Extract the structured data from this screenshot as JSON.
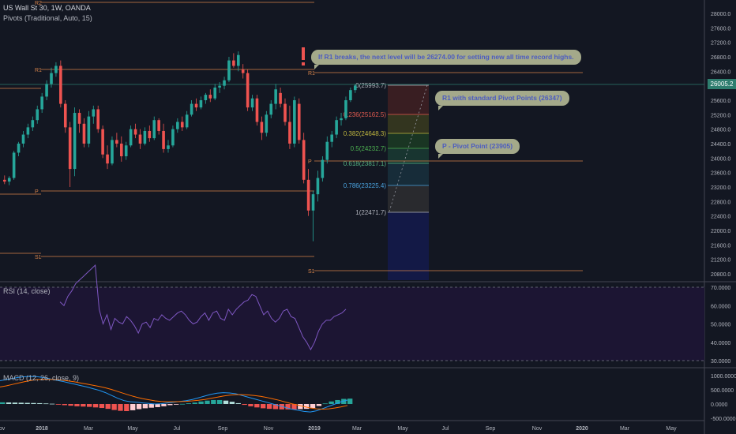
{
  "header": {
    "symbol_line": "US Wall St 30, 1W, OANDA",
    "pivots_line": "Pivots (Traditional, Auto, 15)"
  },
  "price_axis": {
    "ticks": [
      "28000.0",
      "27600.0",
      "27200.0",
      "26800.0",
      "26400.0",
      "26000.0",
      "25600.0",
      "25200.0",
      "24800.0",
      "24400.0",
      "24000.0",
      "23600.0",
      "23200.0",
      "22800.0",
      "22400.0",
      "22000.0",
      "21600.0",
      "21200.0",
      "20800.0"
    ],
    "current_price": "26005.2",
    "current_price_color": "#2e7d6e"
  },
  "pivot_levels": {
    "colors": {
      "pivot_line": "#d4824a",
      "background": "#131722"
    },
    "left_block": {
      "r2": "R2",
      "r1": "R1",
      "p": "P",
      "s1": "S1"
    },
    "right_block": {
      "r1": "R1",
      "p": "P",
      "s1": "S1"
    }
  },
  "fibonacci": {
    "levels": [
      {
        "label": "0(25993.7)",
        "color": "#b2b5be"
      },
      {
        "label": "0.236(25162.5)",
        "color": "#e05a4f"
      },
      {
        "label": "0.382(24648.3)",
        "color": "#c0b73f"
      },
      {
        "label": "0.5(24232.7)",
        "color": "#4caf50"
      },
      {
        "label": "0.618(23817.1)",
        "color": "#55b785"
      },
      {
        "label": "0.786(23225.4)",
        "color": "#4aa3df"
      },
      {
        "label": "1(22471.7)",
        "color": "#b2b5be"
      }
    ]
  },
  "callouts": [
    {
      "text": "If R1 breaks, the next level will be 26274.00 for setting new all time record highs."
    },
    {
      "text": "R1 with standard Pivot Points (26347)"
    },
    {
      "text": "P - Pivot Point (23905)"
    }
  ],
  "rsi": {
    "label": "RSI (14, close)",
    "ticks": [
      "70.0000",
      "60.0000",
      "50.0000",
      "40.0000",
      "30.0000"
    ]
  },
  "macd": {
    "label": "MACD (12, 26, close, 9)",
    "ticks": [
      "1000.0000",
      "500.0000",
      "0.0000",
      "-500.0000"
    ]
  },
  "time_axis": {
    "labels": [
      "Nov",
      "2018",
      "Mar",
      "May",
      "Jul",
      "Sep",
      "Nov",
      "2019",
      "Mar",
      "May",
      "Jul",
      "Sep",
      "Nov",
      "2020",
      "Mar",
      "May"
    ]
  },
  "colors": {
    "up": "#26a69a",
    "down": "#ef5350",
    "rsi_line": "#7e57c2",
    "macd_line": "#2196f3",
    "signal_line": "#ff6d00"
  },
  "chart_data": {
    "type": "candlestick",
    "candles": [
      {
        "o": 23400,
        "h": 23520,
        "l": 23280,
        "c": 23350
      },
      {
        "o": 23350,
        "h": 23500,
        "l": 23250,
        "c": 23450
      },
      {
        "o": 23450,
        "h": 24200,
        "l": 23400,
        "c": 24150
      },
      {
        "o": 24150,
        "h": 24450,
        "l": 24050,
        "c": 24400
      },
      {
        "o": 24400,
        "h": 24750,
        "l": 24300,
        "c": 24650
      },
      {
        "o": 24650,
        "h": 24950,
        "l": 24550,
        "c": 24850
      },
      {
        "o": 24850,
        "h": 25150,
        "l": 24750,
        "c": 25050
      },
      {
        "o": 25050,
        "h": 25450,
        "l": 24950,
        "c": 25350
      },
      {
        "o": 25350,
        "h": 25800,
        "l": 25250,
        "c": 25700
      },
      {
        "o": 25700,
        "h": 26150,
        "l": 25600,
        "c": 26050
      },
      {
        "o": 26050,
        "h": 26500,
        "l": 25950,
        "c": 26350
      },
      {
        "o": 26350,
        "h": 26650,
        "l": 26250,
        "c": 26550
      },
      {
        "o": 26550,
        "h": 26700,
        "l": 25400,
        "c": 25500
      },
      {
        "o": 25500,
        "h": 25600,
        "l": 24700,
        "c": 24850
      },
      {
        "o": 24850,
        "h": 25000,
        "l": 23200,
        "c": 23700
      },
      {
        "o": 23700,
        "h": 25400,
        "l": 23500,
        "c": 25250
      },
      {
        "o": 25250,
        "h": 25350,
        "l": 24700,
        "c": 24950
      },
      {
        "o": 24950,
        "h": 25100,
        "l": 24300,
        "c": 24400
      },
      {
        "o": 24400,
        "h": 25300,
        "l": 24300,
        "c": 25150
      },
      {
        "o": 25150,
        "h": 25450,
        "l": 24950,
        "c": 25350
      },
      {
        "o": 25350,
        "h": 25450,
        "l": 24700,
        "c": 24800
      },
      {
        "o": 24800,
        "h": 24900,
        "l": 24000,
        "c": 24100
      },
      {
        "o": 24100,
        "h": 24350,
        "l": 23700,
        "c": 23850
      },
      {
        "o": 23850,
        "h": 24600,
        "l": 23800,
        "c": 24500
      },
      {
        "o": 24500,
        "h": 24700,
        "l": 24300,
        "c": 24400
      },
      {
        "o": 24400,
        "h": 24600,
        "l": 23900,
        "c": 24050
      },
      {
        "o": 24050,
        "h": 24450,
        "l": 23950,
        "c": 24350
      },
      {
        "o": 24350,
        "h": 24900,
        "l": 24300,
        "c": 24800
      },
      {
        "o": 24800,
        "h": 24950,
        "l": 24550,
        "c": 24650
      },
      {
        "o": 24650,
        "h": 24800,
        "l": 24250,
        "c": 24400
      },
      {
        "o": 24400,
        "h": 24850,
        "l": 24350,
        "c": 24750
      },
      {
        "o": 24750,
        "h": 24900,
        "l": 24450,
        "c": 24550
      },
      {
        "o": 24550,
        "h": 25150,
        "l": 24500,
        "c": 25050
      },
      {
        "o": 25050,
        "h": 25100,
        "l": 24650,
        "c": 24750
      },
      {
        "o": 24750,
        "h": 24950,
        "l": 24150,
        "c": 24250
      },
      {
        "o": 24250,
        "h": 24500,
        "l": 24150,
        "c": 24350
      },
      {
        "o": 24350,
        "h": 24900,
        "l": 24300,
        "c": 24800
      },
      {
        "o": 24800,
        "h": 25100,
        "l": 24700,
        "c": 25000
      },
      {
        "o": 25000,
        "h": 25150,
        "l": 24750,
        "c": 24850
      },
      {
        "o": 24850,
        "h": 25300,
        "l": 24800,
        "c": 25200
      },
      {
        "o": 25200,
        "h": 25600,
        "l": 25150,
        "c": 25500
      },
      {
        "o": 25500,
        "h": 25650,
        "l": 25300,
        "c": 25400
      },
      {
        "o": 25400,
        "h": 25700,
        "l": 25350,
        "c": 25600
      },
      {
        "o": 25600,
        "h": 25800,
        "l": 25500,
        "c": 25750
      },
      {
        "o": 25750,
        "h": 25900,
        "l": 25550,
        "c": 25650
      },
      {
        "o": 25650,
        "h": 26050,
        "l": 25600,
        "c": 25950
      },
      {
        "o": 25950,
        "h": 26100,
        "l": 25800,
        "c": 26000
      },
      {
        "o": 26000,
        "h": 26250,
        "l": 25900,
        "c": 26150
      },
      {
        "o": 26150,
        "h": 26800,
        "l": 26100,
        "c": 26700
      },
      {
        "o": 26700,
        "h": 26900,
        "l": 26500,
        "c": 26550
      },
      {
        "o": 26550,
        "h": 26950,
        "l": 26400,
        "c": 26850
      },
      {
        "o": 26450,
        "h": 26600,
        "l": 26200,
        "c": 26350
      },
      {
        "o": 26350,
        "h": 26450,
        "l": 25300,
        "c": 25400
      },
      {
        "o": 25400,
        "h": 25750,
        "l": 25300,
        "c": 25650
      },
      {
        "o": 25650,
        "h": 25750,
        "l": 24900,
        "c": 25000
      },
      {
        "o": 25000,
        "h": 25150,
        "l": 24500,
        "c": 24700
      },
      {
        "o": 24700,
        "h": 25300,
        "l": 24600,
        "c": 25200
      },
      {
        "o": 25200,
        "h": 25600,
        "l": 25100,
        "c": 25500
      },
      {
        "o": 25500,
        "h": 26050,
        "l": 25350,
        "c": 25900
      },
      {
        "o": 25800,
        "h": 25950,
        "l": 25400,
        "c": 25500
      },
      {
        "o": 25500,
        "h": 25650,
        "l": 24900,
        "c": 25000
      },
      {
        "o": 25000,
        "h": 25450,
        "l": 24250,
        "c": 24400
      },
      {
        "o": 24400,
        "h": 25700,
        "l": 24300,
        "c": 25600
      },
      {
        "o": 25500,
        "h": 25650,
        "l": 24400,
        "c": 24500
      },
      {
        "o": 24500,
        "h": 24700,
        "l": 23300,
        "c": 23400
      },
      {
        "o": 23400,
        "h": 23700,
        "l": 22400,
        "c": 22550
      },
      {
        "o": 22550,
        "h": 23100,
        "l": 21700,
        "c": 23000
      },
      {
        "o": 23000,
        "h": 23650,
        "l": 22800,
        "c": 23450
      },
      {
        "o": 23450,
        "h": 24050,
        "l": 23350,
        "c": 23950
      },
      {
        "o": 23950,
        "h": 24600,
        "l": 23850,
        "c": 24450
      },
      {
        "o": 24450,
        "h": 24750,
        "l": 24300,
        "c": 24650
      },
      {
        "o": 24650,
        "h": 25150,
        "l": 24550,
        "c": 25050
      },
      {
        "o": 25050,
        "h": 25250,
        "l": 24900,
        "c": 25100
      },
      {
        "o": 25100,
        "h": 25700,
        "l": 25050,
        "c": 25600
      },
      {
        "o": 25600,
        "h": 25950,
        "l": 25550,
        "c": 25880
      },
      {
        "o": 25880,
        "h": 26050,
        "l": 25800,
        "c": 26005.2
      }
    ],
    "rsi": [
      62,
      60,
      65,
      68,
      72,
      74,
      76,
      78,
      80,
      82,
      58,
      50,
      55,
      47,
      53,
      51,
      50,
      54,
      52,
      49,
      45,
      50,
      51,
      48,
      53,
      52,
      55,
      53,
      52,
      54,
      56,
      57,
      55,
      52,
      50,
      51,
      54,
      56,
      52,
      56,
      57,
      53,
      52,
      58,
      55,
      58,
      60,
      62,
      63,
      66,
      65,
      60,
      55,
      57,
      53,
      51,
      53,
      57,
      58,
      54,
      53,
      48,
      43,
      40,
      36,
      40,
      46,
      50,
      52,
      52,
      54,
      55,
      56,
      58
    ],
    "macd": [
      820,
      860,
      900,
      940,
      960,
      970,
      960,
      930,
      890,
      840,
      800,
      750,
      700,
      650,
      600,
      540,
      480,
      400,
      300,
      200,
      120,
      80,
      60,
      40,
      20,
      0,
      10,
      40,
      60,
      90,
      120,
      160,
      220,
      280,
      340,
      380,
      400,
      390,
      360,
      300,
      240,
      180,
      120,
      60,
      0,
      -60,
      -120,
      -180,
      -220,
      -260,
      -280,
      -240,
      -160,
      -80,
      0,
      80,
      140
    ],
    "signal": [
      600,
      640,
      690,
      740,
      790,
      830,
      860,
      870,
      870,
      860,
      840,
      810,
      780,
      740,
      700,
      660,
      620,
      570,
      510,
      440,
      370,
      300,
      240,
      190,
      150,
      110,
      90,
      80,
      80,
      85,
      95,
      110,
      130,
      160,
      200,
      240,
      280,
      310,
      330,
      330,
      320,
      300,
      270,
      230,
      180,
      130,
      70,
      10,
      -40,
      -90,
      -140,
      -170,
      -180,
      -170,
      -140,
      -100,
      -50
    ],
    "hist": [
      60,
      55,
      50,
      45,
      40,
      35,
      30,
      20,
      10,
      -20,
      -40,
      -60,
      -80,
      -90,
      -100,
      -120,
      -140,
      -170,
      -210,
      -240,
      -250,
      -220,
      -180,
      -150,
      -130,
      -110,
      -80,
      -40,
      -20,
      5,
      25,
      50,
      90,
      120,
      140,
      140,
      120,
      80,
      30,
      -30,
      -80,
      -120,
      -150,
      -170,
      -180,
      -190,
      -190,
      -190,
      -180,
      -170,
      -140,
      -70,
      20,
      90,
      140,
      180,
      190
    ]
  }
}
